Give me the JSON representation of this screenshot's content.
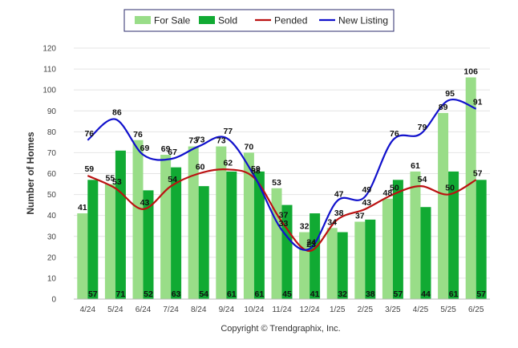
{
  "chart_data": {
    "type": "bar",
    "categories": [
      "4/24",
      "5/24",
      "6/24",
      "7/24",
      "8/24",
      "9/24",
      "10/24",
      "11/24",
      "12/24",
      "1/25",
      "2/25",
      "3/25",
      "4/25",
      "5/25",
      "6/25"
    ],
    "series": [
      {
        "name": "For Sale",
        "type": "bar",
        "color": "#99dd88",
        "values": [
          41,
          55,
          76,
          69,
          73,
          73,
          70,
          53,
          32,
          34,
          37,
          48,
          61,
          89,
          106
        ]
      },
      {
        "name": "Sold",
        "type": "bar",
        "color": "#11aa33",
        "values": [
          57,
          71,
          52,
          63,
          54,
          61,
          61,
          45,
          41,
          32,
          38,
          57,
          44,
          61,
          57
        ]
      },
      {
        "name": "Pended",
        "type": "line",
        "color": "#bb1111",
        "values": [
          59,
          53,
          43,
          54,
          60,
          62,
          58,
          37,
          23,
          38,
          43,
          50,
          54,
          50,
          57
        ]
      },
      {
        "name": "New Listing",
        "type": "line",
        "color": "#1111cc",
        "values": [
          76,
          86,
          69,
          67,
          73,
          77,
          59,
          33,
          24,
          47,
          49,
          76,
          79,
          95,
          91
        ]
      }
    ],
    "ylabel": "Number of Homes",
    "xlabel": "",
    "ylim": [
      0,
      120
    ],
    "yticks": [
      0,
      10,
      20,
      30,
      40,
      50,
      60,
      70,
      80,
      90,
      100,
      110,
      120
    ],
    "grid": true,
    "legend": "top-center"
  },
  "footer": "Copyright © Trendgraphix, Inc."
}
